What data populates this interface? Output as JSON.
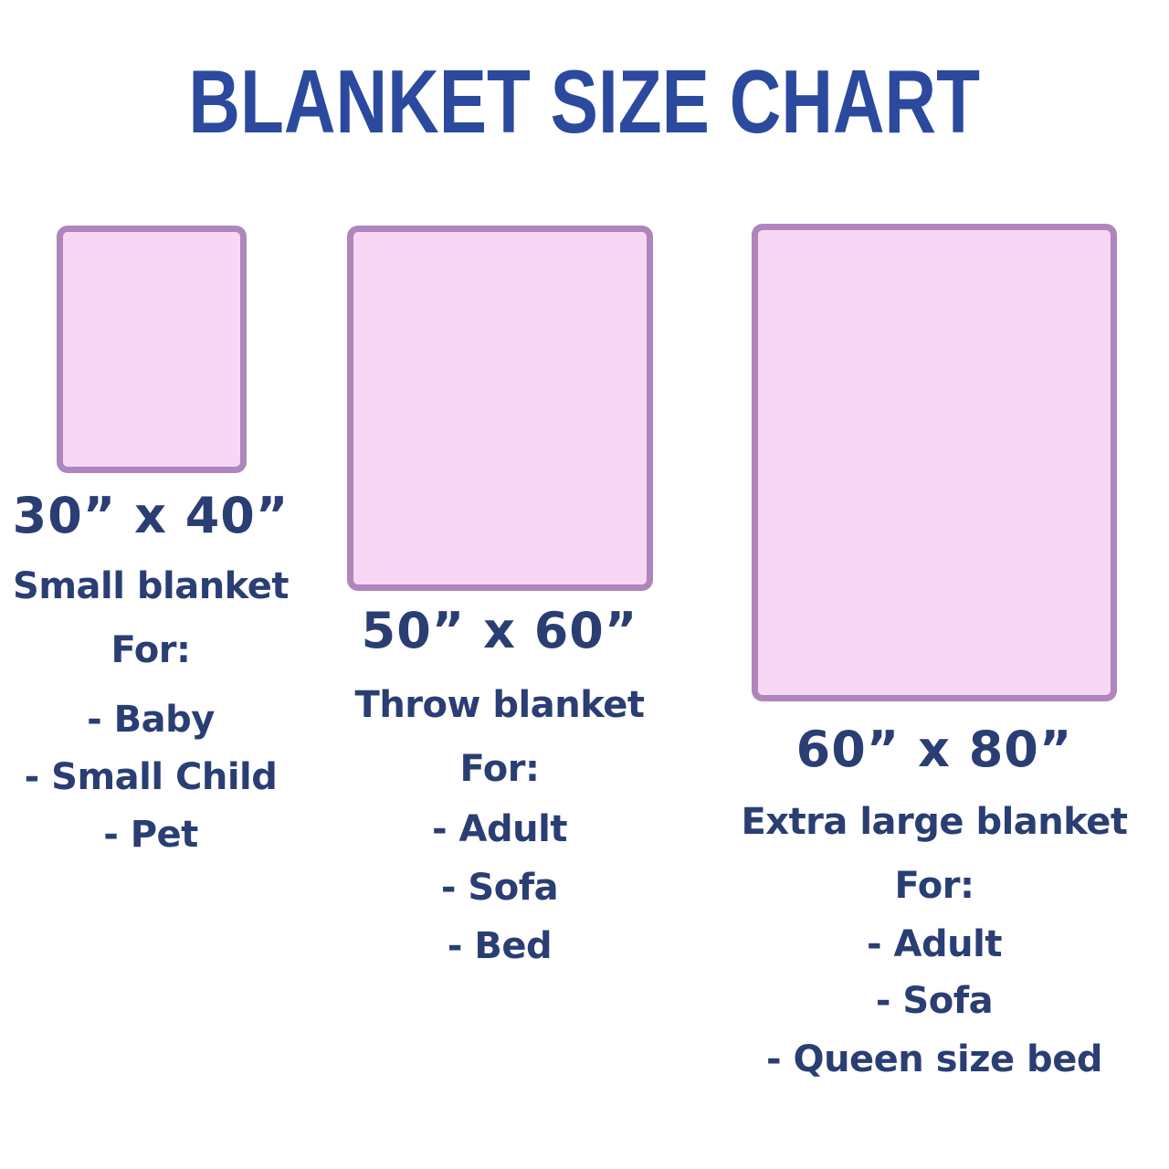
{
  "title": "BLANKET SIZE CHART",
  "colors": {
    "background": "#FFFFFF",
    "title_blue": "#2B4A9E",
    "text_navy": "#2A3E73",
    "blanket_fill": "#F8D7F5",
    "blanket_border": "#AF85BC"
  },
  "blankets": [
    {
      "size": "30” x 40”",
      "name": "Small blanket",
      "for_label": "For:",
      "uses": [
        "- Baby",
        "- Small Child",
        "- Pet"
      ]
    },
    {
      "size": "50” x 60”",
      "name": "Throw blanket",
      "for_label": "For:",
      "uses": [
        "- Adult",
        "- Sofa",
        "- Bed"
      ]
    },
    {
      "size": "60” x 80”",
      "name": "Extra large blanket",
      "for_label": "For:",
      "uses": [
        "- Adult",
        "- Sofa",
        "- Queen size bed"
      ]
    }
  ]
}
